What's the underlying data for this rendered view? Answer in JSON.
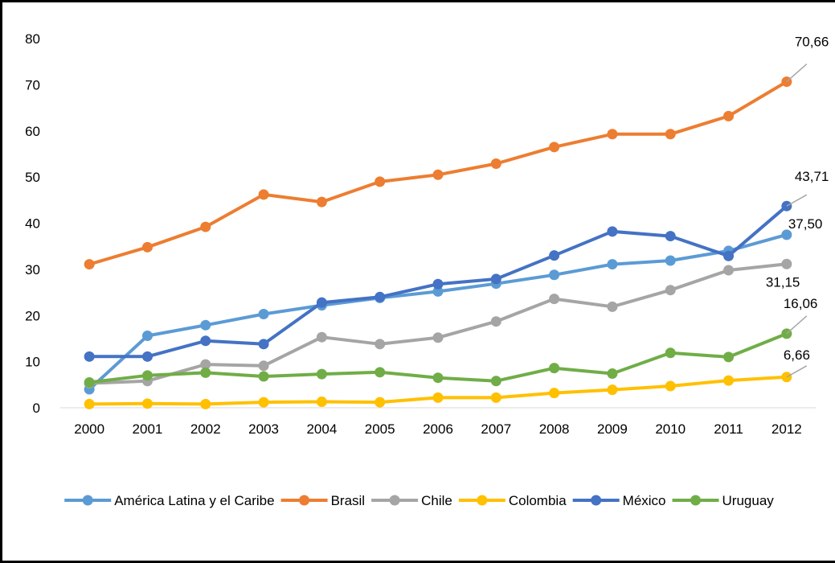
{
  "chart_data": {
    "type": "line",
    "title": "",
    "xlabel": "",
    "ylabel": "",
    "x": [
      "2000",
      "2001",
      "2002",
      "2003",
      "2004",
      "2005",
      "2006",
      "2007",
      "2008",
      "2009",
      "2010",
      "2011",
      "2012"
    ],
    "ylim": [
      0,
      80
    ],
    "yticks": [
      0,
      10,
      20,
      30,
      40,
      50,
      60,
      70,
      80
    ],
    "grid": false,
    "legend_position": "bottom",
    "series": [
      {
        "name": "América Latina y el Caribe",
        "color": "#5B9BD5",
        "values": [
          4.0,
          15.6,
          17.9,
          20.3,
          22.2,
          23.8,
          25.2,
          26.9,
          28.8,
          31.1,
          31.9,
          34.0,
          37.5
        ],
        "end_label": "37,50"
      },
      {
        "name": "Brasil",
        "color": "#ED7D31",
        "values": [
          31.1,
          34.8,
          39.2,
          46.2,
          44.6,
          49.0,
          50.5,
          52.9,
          56.5,
          59.3,
          59.3,
          63.2,
          70.66
        ],
        "end_label": "70,66"
      },
      {
        "name": "Chile",
        "color": "#A5A5A5",
        "values": [
          5.3,
          5.8,
          9.4,
          9.1,
          15.3,
          13.8,
          15.2,
          18.7,
          23.6,
          21.9,
          25.5,
          29.8,
          31.15
        ],
        "end_label": "31,15"
      },
      {
        "name": "Colombia",
        "color": "#FFC000",
        "values": [
          0.8,
          0.9,
          0.8,
          1.2,
          1.3,
          1.2,
          2.2,
          2.2,
          3.2,
          3.9,
          4.7,
          5.9,
          6.66
        ],
        "end_label": "6,66"
      },
      {
        "name": "México",
        "color": "#4472C4",
        "values": [
          11.1,
          11.1,
          14.5,
          13.8,
          22.8,
          24.0,
          26.8,
          27.9,
          33.0,
          38.2,
          37.2,
          32.9,
          43.71
        ],
        "end_label": "43,71"
      },
      {
        "name": "Uruguay",
        "color": "#70AD47",
        "values": [
          5.5,
          7.0,
          7.6,
          6.8,
          7.3,
          7.7,
          6.5,
          5.8,
          8.6,
          7.4,
          11.9,
          11.0,
          16.06
        ],
        "end_label": "16,06"
      }
    ]
  }
}
